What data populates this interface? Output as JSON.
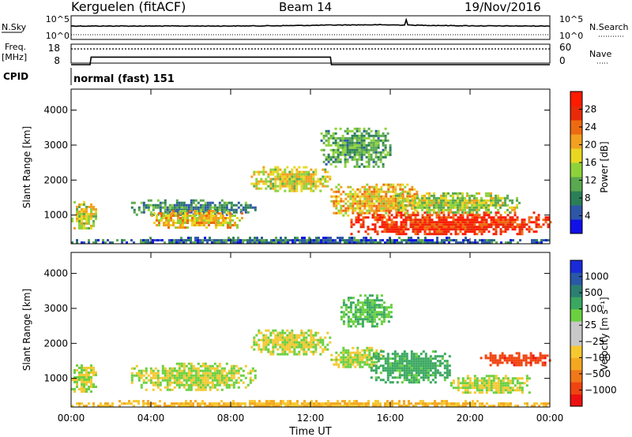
{
  "header": {
    "station": "Kerguelen (fitACF)",
    "beam": "Beam 14",
    "date": "19/Nov/2016"
  },
  "strip_panels": {
    "nsky": {
      "label": "N.Sky",
      "y_ticks": [
        "10^5",
        "10^0"
      ],
      "right_ticks": [
        "10^5",
        "10^0"
      ],
      "right_label": "N.Search"
    },
    "freq": {
      "label_line1": "Freq.",
      "label_line2": "[MHz]",
      "y_ticks": [
        "18",
        "8"
      ],
      "right_ticks": [
        "60",
        "0"
      ],
      "right_label": "Nave"
    },
    "cpid": {
      "label": "CPID",
      "mode_text": "normal (fast) 151"
    }
  },
  "power_colorbar": {
    "title": "Power [dB]",
    "labels": [
      "28",
      "24",
      "20",
      "16",
      "12",
      "8",
      "4"
    ],
    "colors": [
      "#1010e8",
      "#2e56a8",
      "#2b7f58",
      "#5aa850",
      "#8ed23a",
      "#e8d820",
      "#f2a020",
      "#ee6a10",
      "#e82a08",
      "#ff1a00"
    ]
  },
  "velocity_colorbar": {
    "title": "Velocity [m s⁻¹]",
    "labels": [
      "1000",
      "500",
      "100",
      "25",
      "−25",
      "−100",
      "−500",
      "−1000"
    ],
    "colors": [
      "#ee1010",
      "#f04410",
      "#f07818",
      "#f4a820",
      "#f6c830",
      "#c8c8c8",
      "#c8c8c8",
      "#6ad040",
      "#3aa860",
      "#2b7f70",
      "#2a58a8",
      "#1a2ad8"
    ]
  },
  "chart_data": [
    {
      "panel": "noise",
      "type": "line",
      "series": [
        {
          "name": "N.Sky",
          "description_level": "high"
        },
        {
          "name": "N.Search",
          "description_level": "low"
        }
      ]
    },
    {
      "panel": "frequency",
      "type": "line",
      "x": [
        0,
        0.95,
        1.0,
        13.0,
        13.05,
        24.0
      ],
      "series": [
        {
          "name": "Freq. [MHz]",
          "values": [
            8,
            8,
            12,
            12,
            8,
            8
          ]
        },
        {
          "name": "Nave",
          "values": [
            45,
            45,
            45,
            45,
            45,
            45
          ]
        }
      ],
      "xlim": [
        0,
        24
      ]
    },
    {
      "panel": "power",
      "type": "heatmap",
      "title": "Power [dB]",
      "xlabel": "",
      "ylabel": "Slant Range [km]",
      "x_ticks": [
        "00:00",
        "04:00",
        "08:00",
        "12:00",
        "16:00",
        "20:00",
        "00:00"
      ],
      "y_ticks": [
        1000,
        2000,
        3000,
        4000
      ],
      "xlim": [
        0,
        24
      ],
      "ylim": [
        180,
        4600
      ],
      "regions": [
        {
          "t0": 0.0,
          "t1": 1.2,
          "r0": 600,
          "r1": 1400,
          "level": 16
        },
        {
          "t0": 3.0,
          "t1": 9.2,
          "r0": 1000,
          "r1": 1450,
          "level": 8
        },
        {
          "t0": 4.0,
          "t1": 8.6,
          "r0": 650,
          "r1": 1150,
          "level": 18
        },
        {
          "t0": 9.0,
          "t1": 13.0,
          "r0": 1700,
          "r1": 2400,
          "level": 16
        },
        {
          "t0": 12.5,
          "t1": 16.0,
          "r0": 2400,
          "r1": 3500,
          "level": 10
        },
        {
          "t0": 13.0,
          "t1": 17.5,
          "r0": 1000,
          "r1": 1900,
          "level": 18
        },
        {
          "t0": 14.0,
          "t1": 24.0,
          "r0": 450,
          "r1": 1100,
          "level": 26
        },
        {
          "t0": 16.0,
          "t1": 22.5,
          "r0": 1100,
          "r1": 1650,
          "level": 14
        },
        {
          "t0": 0.0,
          "t1": 24.0,
          "r0": 180,
          "r1": 380,
          "level": 6
        }
      ]
    },
    {
      "panel": "velocity",
      "type": "heatmap",
      "title": "Velocity [m s⁻¹]",
      "xlabel": "Time UT",
      "ylabel": "Slant Range [km]",
      "x_ticks": [
        "00:00",
        "04:00",
        "08:00",
        "12:00",
        "16:00",
        "20:00",
        "00:00"
      ],
      "y_ticks": [
        1000,
        2000,
        3000,
        4000
      ],
      "xlim": [
        0,
        24
      ],
      "ylim": [
        180,
        4600
      ],
      "regions": [
        {
          "t0": 0.0,
          "t1": 1.2,
          "r0": 600,
          "r1": 1400,
          "level": 0
        },
        {
          "t0": 3.0,
          "t1": 9.2,
          "r0": 700,
          "r1": 1450,
          "level": 0
        },
        {
          "t0": 9.0,
          "t1": 13.0,
          "r0": 1700,
          "r1": 2400,
          "level": 0
        },
        {
          "t0": 13.0,
          "t1": 15.5,
          "r0": 1300,
          "r1": 1900,
          "level": 0
        },
        {
          "t0": 15.0,
          "t1": 19.0,
          "r0": 900,
          "r1": 1800,
          "level": 80
        },
        {
          "t0": 19.0,
          "t1": 23.0,
          "r0": 600,
          "r1": 1100,
          "level": 0
        },
        {
          "t0": 20.5,
          "t1": 24.0,
          "r0": 1400,
          "r1": 1750,
          "level": -300
        },
        {
          "t0": 13.5,
          "t1": 16.0,
          "r0": 2500,
          "r1": 3400,
          "level": 60
        },
        {
          "t0": 0.0,
          "t1": 24.0,
          "r0": 180,
          "r1": 380,
          "level": -80
        }
      ]
    }
  ]
}
